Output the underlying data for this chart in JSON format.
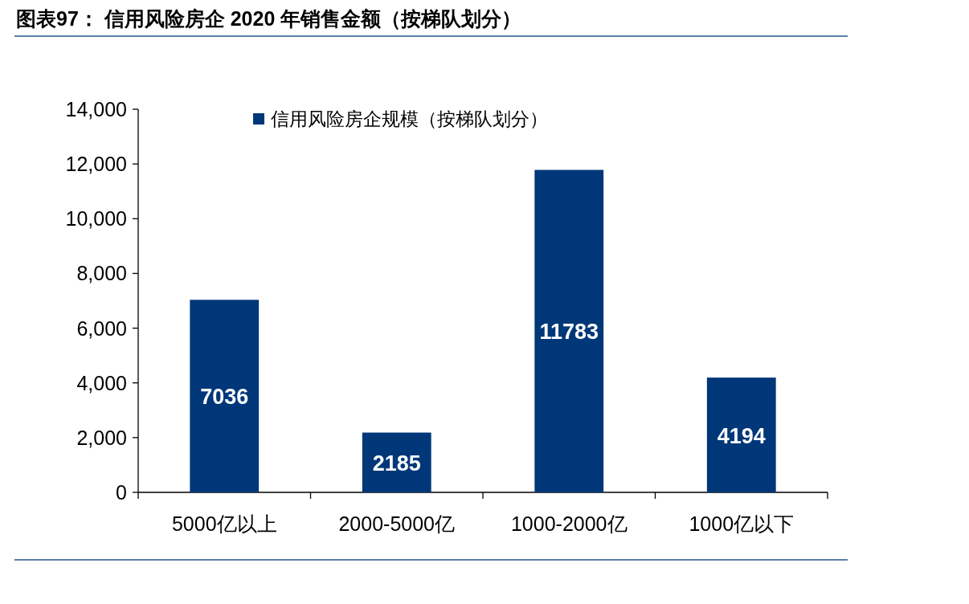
{
  "chart_data": {
    "type": "bar",
    "title": "图表97：  信用风险房企 2020 年销售金额（按梯队划分）",
    "categories": [
      "5000亿以上",
      "2000-5000亿",
      "1000-2000亿",
      "1000亿以下"
    ],
    "series": [
      {
        "name": "信用风险房企规模（按梯队划分）",
        "color": "#003778",
        "values": [
          7036,
          2185,
          11783,
          4194
        ]
      }
    ],
    "ylim": [
      0,
      14000
    ],
    "yticks": [
      0,
      {
        "value": 2000,
        "label": "2,000"
      },
      {
        "value": 4000,
        "label": "4,000"
      },
      {
        "value": 6000,
        "label": "6,000"
      },
      {
        "value": 8000,
        "label": "8,000"
      },
      {
        "value": 10000,
        "label": "10,000"
      },
      {
        "value": 12000,
        "label": "12,000"
      },
      {
        "value": 14000,
        "label": "14,000"
      }
    ],
    "legend": "top",
    "data_labels": true
  }
}
